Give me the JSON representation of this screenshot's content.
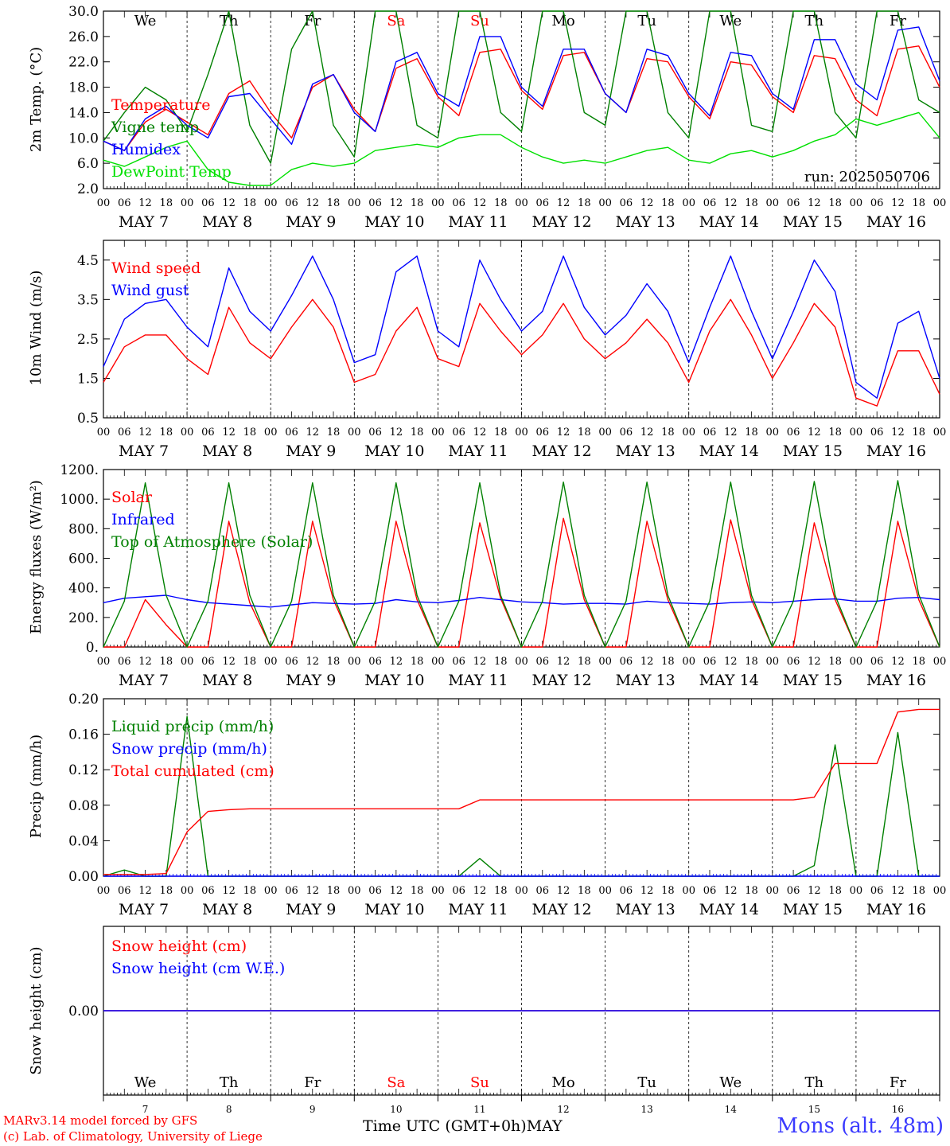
{
  "colors": {
    "red": "#ff0000",
    "green": "#008000",
    "blue": "#0000ff",
    "lightgreen": "#00e000",
    "weekend": "#ff0000",
    "station": "#3a3aff"
  },
  "days": [
    "We",
    "Th",
    "Fr",
    "Sa",
    "Su",
    "Mo",
    "Tu",
    "We",
    "Th",
    "Fr"
  ],
  "weekend_days": [
    3,
    4
  ],
  "hour_ticks": [
    "00",
    "06",
    "12",
    "18"
  ],
  "date_labels": [
    "MAY  7",
    "MAY  8",
    "MAY  9",
    "MAY 10",
    "MAY 11",
    "MAY 12",
    "MAY 13",
    "MAY 14",
    "MAY 15",
    "MAY 16"
  ],
  "bottom_day_numbers": [
    "7",
    "8",
    "9",
    "10",
    "11",
    "12",
    "13",
    "14",
    "15",
    "16"
  ],
  "footer": {
    "model": "MARv3.14 model forced by GFS",
    "copyright": "(c) Lab. of Climatology, University of Liege",
    "axis_title": "Time UTC (GMT+0h)MAY",
    "station": "Mons (alt. 48m)"
  },
  "chart_data": [
    {
      "type": "line",
      "ylabel": "2m Temp. (°C)",
      "yticks": [
        "30.0",
        "26.0",
        "22.0",
        "18.0",
        "14.0",
        "10.0",
        "6.0",
        "2.0"
      ],
      "ylim": [
        2,
        30
      ],
      "x": "hours since May 7 00 UTC, every 6 h (0..240)",
      "annotation": "run: 2025050706",
      "series": [
        {
          "name": "Temperature",
          "color": "red",
          "values": [
            9.5,
            8.0,
            12.5,
            14.5,
            12.5,
            10.5,
            17.0,
            19.0,
            14.0,
            10.0,
            18.0,
            20.0,
            14.5,
            11.0,
            21.0,
            22.5,
            16.5,
            13.5,
            23.5,
            24.0,
            17.5,
            14.5,
            23.0,
            23.5,
            17.0,
            14.0,
            22.5,
            22.0,
            16.5,
            13.0,
            22.0,
            21.5,
            16.5,
            14.0,
            23.0,
            22.5,
            16.0,
            13.5,
            24.0,
            24.5,
            18.0
          ]
        },
        {
          "name": "Vigne temp",
          "color": "green",
          "values": [
            9.5,
            14.0,
            18.0,
            16.0,
            11.0,
            20.0,
            30.0,
            12.0,
            6.0,
            24.0,
            30.0,
            12.0,
            7.0,
            30.0,
            30.0,
            12.0,
            10.0,
            30.0,
            30.0,
            14.0,
            11.0,
            30.0,
            30.0,
            14.0,
            12.0,
            30.0,
            30.0,
            14.0,
            10.0,
            30.0,
            30.0,
            12.0,
            11.0,
            30.0,
            30.0,
            14.0,
            10.0,
            30.0,
            30.0,
            16.0,
            14.0
          ]
        },
        {
          "name": "Humidex",
          "color": "blue",
          "values": [
            9.5,
            8.0,
            13.0,
            15.0,
            12.0,
            10.0,
            16.5,
            17.0,
            13.0,
            9.0,
            18.5,
            20.0,
            14.0,
            11.0,
            22.0,
            23.5,
            17.0,
            15.0,
            26.0,
            26.0,
            18.0,
            15.0,
            24.0,
            24.0,
            17.0,
            14.0,
            24.0,
            23.0,
            17.0,
            13.5,
            23.5,
            23.0,
            17.0,
            14.5,
            25.5,
            25.5,
            18.5,
            16.0,
            27.0,
            27.5,
            19.0
          ]
        },
        {
          "name": "DewPoint Temp",
          "color": "lightgreen",
          "values": [
            6.5,
            5.5,
            7.0,
            8.5,
            9.5,
            5.0,
            3.0,
            2.5,
            2.5,
            5.0,
            6.0,
            5.5,
            6.0,
            8.0,
            8.5,
            9.0,
            8.5,
            10.0,
            10.5,
            10.5,
            8.5,
            7.0,
            6.0,
            6.5,
            6.0,
            7.0,
            8.0,
            8.5,
            6.5,
            6.0,
            7.5,
            8.0,
            7.0,
            8.0,
            9.5,
            10.5,
            13.0,
            12.0,
            13.0,
            14.0,
            10.0
          ]
        }
      ]
    },
    {
      "type": "line",
      "ylabel": "10m Wind (m/s)",
      "yticks": [
        "4.5",
        "3.5",
        "2.5",
        "1.5",
        "0.5"
      ],
      "ylim": [
        0.5,
        5.0
      ],
      "x": "hours since May 7 00 UTC, every 6 h (0..240)",
      "series": [
        {
          "name": "Wind speed",
          "color": "red",
          "values": [
            1.4,
            2.3,
            2.6,
            2.6,
            2.0,
            1.6,
            3.3,
            2.4,
            2.0,
            2.8,
            3.5,
            2.8,
            1.4,
            1.6,
            2.7,
            3.3,
            2.0,
            1.8,
            3.4,
            2.7,
            2.1,
            2.6,
            3.4,
            2.5,
            2.0,
            2.4,
            3.0,
            2.4,
            1.4,
            2.7,
            3.5,
            2.6,
            1.5,
            2.4,
            3.4,
            2.8,
            1.0,
            0.8,
            2.2,
            2.2,
            1.1
          ]
        },
        {
          "name": "Wind gust",
          "color": "blue",
          "values": [
            1.8,
            3.0,
            3.4,
            3.5,
            2.8,
            2.3,
            4.3,
            3.2,
            2.7,
            3.6,
            4.6,
            3.5,
            1.9,
            2.1,
            4.2,
            4.6,
            2.7,
            2.3,
            4.5,
            3.5,
            2.7,
            3.2,
            4.6,
            3.3,
            2.6,
            3.1,
            3.9,
            3.2,
            1.9,
            3.3,
            4.6,
            3.2,
            2.0,
            3.2,
            4.5,
            3.7,
            1.4,
            1.0,
            2.9,
            3.2,
            1.5
          ]
        }
      ]
    },
    {
      "type": "line",
      "ylabel": "Energy fluxes (W/m²)",
      "yticks": [
        "1200.",
        "1000.",
        "800.",
        "600.",
        "400.",
        "200.",
        "0."
      ],
      "ylim": [
        0,
        1200
      ],
      "x": "hours since May 7 00 UTC, every 6 h (0..240)",
      "series": [
        {
          "name": "Solar",
          "color": "red",
          "values": [
            0,
            0,
            320,
            150,
            0,
            0,
            850,
            300,
            0,
            0,
            850,
            320,
            0,
            0,
            850,
            320,
            0,
            0,
            840,
            330,
            0,
            0,
            870,
            320,
            0,
            0,
            850,
            320,
            0,
            0,
            860,
            320,
            0,
            0,
            840,
            320,
            0,
            0,
            850,
            320,
            0
          ]
        },
        {
          "name": "Infrared",
          "color": "blue",
          "values": [
            300,
            330,
            340,
            350,
            320,
            300,
            290,
            280,
            270,
            285,
            300,
            295,
            290,
            295,
            320,
            305,
            300,
            315,
            335,
            320,
            305,
            300,
            290,
            295,
            295,
            290,
            310,
            300,
            295,
            290,
            300,
            305,
            300,
            310,
            320,
            325,
            310,
            310,
            330,
            335,
            320
          ]
        },
        {
          "name": "Top of Atmosphere (Solar)",
          "color": "green",
          "values": [
            0,
            310,
            1110,
            350,
            0,
            310,
            1110,
            350,
            0,
            310,
            1110,
            350,
            0,
            310,
            1110,
            350,
            0,
            310,
            1110,
            350,
            0,
            310,
            1115,
            350,
            0,
            310,
            1115,
            350,
            0,
            310,
            1115,
            350,
            0,
            310,
            1120,
            350,
            0,
            310,
            1125,
            355,
            0
          ]
        }
      ]
    },
    {
      "type": "line",
      "ylabel": "Precip (mm/h)",
      "yticks": [
        "0.20",
        "0.16",
        "0.12",
        "0.08",
        "0.04",
        "0.00"
      ],
      "ylim": [
        0,
        0.2
      ],
      "x": "hours since May 7 00 UTC, every 6 h (0..240)",
      "series": [
        {
          "name": "Liquid precip (mm/h)",
          "color": "green",
          "values": [
            0,
            0.007,
            0,
            0,
            0.18,
            0,
            0,
            0,
            0,
            0,
            0,
            0,
            0,
            0,
            0,
            0,
            0,
            0,
            0.02,
            0,
            0,
            0,
            0,
            0,
            0,
            0,
            0,
            0,
            0,
            0,
            0,
            0,
            0,
            0,
            0.012,
            0.148,
            0,
            0,
            0.162,
            0,
            0
          ]
        },
        {
          "name": "Snow precip (mm/h)",
          "color": "blue",
          "values": [
            0,
            0,
            0,
            0,
            0,
            0,
            0,
            0,
            0,
            0,
            0,
            0,
            0,
            0,
            0,
            0,
            0,
            0,
            0,
            0,
            0,
            0,
            0,
            0,
            0,
            0,
            0,
            0,
            0,
            0,
            0,
            0,
            0,
            0,
            0,
            0,
            0,
            0,
            0,
            0,
            0
          ]
        },
        {
          "name": "Total cumulated (cm)",
          "color": "red",
          "values": [
            0.002,
            0.002,
            0.002,
            0.003,
            0.05,
            0.073,
            0.075,
            0.076,
            0.076,
            0.076,
            0.076,
            0.076,
            0.076,
            0.076,
            0.076,
            0.076,
            0.076,
            0.076,
            0.086,
            0.086,
            0.086,
            0.086,
            0.086,
            0.086,
            0.086,
            0.086,
            0.086,
            0.086,
            0.086,
            0.086,
            0.086,
            0.086,
            0.086,
            0.086,
            0.089,
            0.127,
            0.127,
            0.127,
            0.185,
            0.188,
            0.188
          ]
        }
      ]
    },
    {
      "type": "line",
      "ylabel": "Snow height (cm)",
      "yticks": [
        "0.00"
      ],
      "ylim": [
        -0.1,
        0.1
      ],
      "x": "hours since May 7 00 UTC, every 6 h (0..240)",
      "series": [
        {
          "name": "Snow height (cm)",
          "color": "red",
          "values": [
            0,
            0,
            0,
            0,
            0,
            0,
            0,
            0,
            0,
            0,
            0,
            0,
            0,
            0,
            0,
            0,
            0,
            0,
            0,
            0,
            0,
            0,
            0,
            0,
            0,
            0,
            0,
            0,
            0,
            0,
            0,
            0,
            0,
            0,
            0,
            0,
            0,
            0,
            0,
            0,
            0
          ]
        },
        {
          "name": "Snow height (cm W.E.)",
          "color": "blue",
          "values": [
            0,
            0,
            0,
            0,
            0,
            0,
            0,
            0,
            0,
            0,
            0,
            0,
            0,
            0,
            0,
            0,
            0,
            0,
            0,
            0,
            0,
            0,
            0,
            0,
            0,
            0,
            0,
            0,
            0,
            0,
            0,
            0,
            0,
            0,
            0,
            0,
            0,
            0,
            0,
            0,
            0
          ]
        }
      ]
    }
  ]
}
